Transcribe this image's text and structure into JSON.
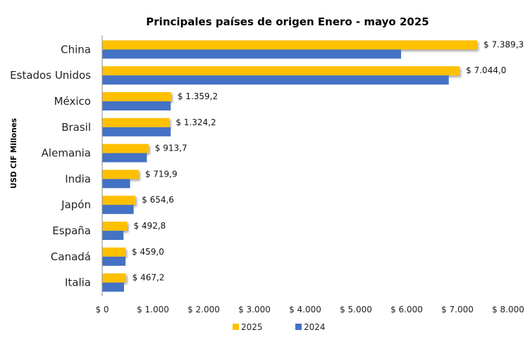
{
  "chart_data": {
    "type": "bar",
    "orientation": "horizontal",
    "title": "Principales países de origen Enero - mayo 2025",
    "ylabel": "USD CIF Millones",
    "xlabel": "",
    "categories": [
      "China",
      "Estados Unidos",
      "México",
      "Brasil",
      "Alemania",
      "India",
      "Japón",
      "España",
      "Canadá",
      "Italia"
    ],
    "series": [
      {
        "name": "2025",
        "color": "#FFC000",
        "values": [
          7389.3,
          7044.0,
          1359.2,
          1324.2,
          913.7,
          719.9,
          654.6,
          492.8,
          459.0,
          467.2
        ],
        "labels": [
          "$ 7.389,3",
          "$ 7.044,0",
          "$ 1.359,2",
          "$ 1.324,2",
          "$ 913,7",
          "$ 719,9",
          "$ 654,6",
          "$ 492,8",
          "$ 459,0",
          "$ 467,2"
        ]
      },
      {
        "name": "2024",
        "color": "#4472C4",
        "values": [
          5890,
          6830,
          1350,
          1350,
          880,
          550,
          620,
          420,
          460,
          430
        ]
      }
    ],
    "xlim": [
      0,
      8000
    ],
    "xticks": [
      0,
      1000,
      2000,
      3000,
      4000,
      5000,
      6000,
      7000,
      8000
    ],
    "xtick_labels": [
      "$ 0",
      "$ 1.000",
      "$ 2.000",
      "$ 3.000",
      "$ 4.000",
      "$ 5.000",
      "$ 6.000",
      "$ 7.000",
      "$ 8.000"
    ],
    "grid": false,
    "legend_position": "bottom"
  }
}
